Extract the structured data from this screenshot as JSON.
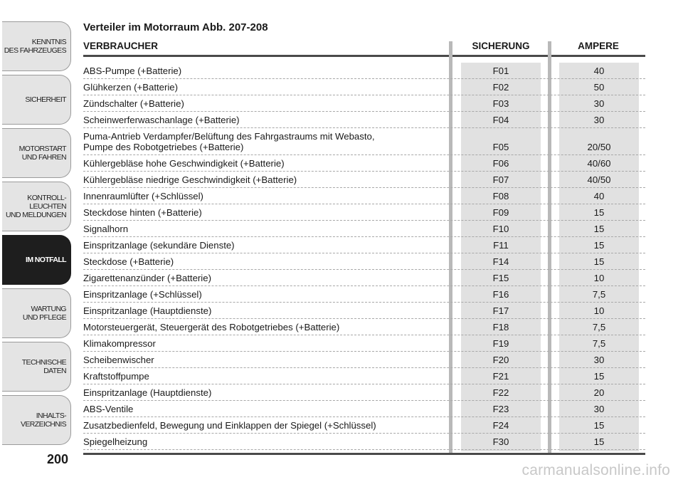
{
  "sidebar": {
    "tabs": [
      {
        "label": "KENNTNIS\nDES FAHRZEUGES",
        "active": false
      },
      {
        "label": "SICHERHEIT",
        "active": false
      },
      {
        "label": "MOTORSTART\nUND FAHREN",
        "active": false
      },
      {
        "label": "KONTROLL-\nLEUCHTEN\nUND MELDUNGEN",
        "active": false
      },
      {
        "label": "IM NOTFALL",
        "active": true
      },
      {
        "label": "WARTUNG\nUND PFLEGE",
        "active": false
      },
      {
        "label": "TECHNISCHE\nDATEN",
        "active": false
      },
      {
        "label": "INHALTS-\nVERZEICHNIS",
        "active": false
      }
    ],
    "page_number": "200"
  },
  "content": {
    "title": "Verteiler im Motorraum Abb. 207-208",
    "headers": {
      "consumer": "VERBRAUCHER",
      "fuse": "SICHERUNG",
      "ampere": "AMPERE"
    },
    "rows": [
      {
        "consumer": "ABS-Pumpe (+Batterie)",
        "fuse": "F01",
        "ampere": "40"
      },
      {
        "consumer": "Glühkerzen (+Batterie)",
        "fuse": "F02",
        "ampere": "50"
      },
      {
        "consumer": "Zündschalter (+Batterie)",
        "fuse": "F03",
        "ampere": "30"
      },
      {
        "consumer": "Scheinwerferwaschanlage (+Batterie)",
        "fuse": "F04",
        "ampere": "30"
      },
      {
        "consumer": "Puma-Antrieb Verdampfer/Belüftung des Fahrgastraums mit Webasto,\nPumpe des Robotgetriebes (+Batterie)",
        "fuse": "F05",
        "ampere": "20/50"
      },
      {
        "consumer": "Kühlergebläse hohe Geschwindigkeit (+Batterie)",
        "fuse": "F06",
        "ampere": "40/60"
      },
      {
        "consumer": "Kühlergebläse niedrige Geschwindigkeit (+Batterie)",
        "fuse": "F07",
        "ampere": "40/50"
      },
      {
        "consumer": "Innenraumlüfter (+Schlüssel)",
        "fuse": "F08",
        "ampere": "40"
      },
      {
        "consumer": "Steckdose hinten (+Batterie)",
        "fuse": "F09",
        "ampere": "15"
      },
      {
        "consumer": "Signalhorn",
        "fuse": "F10",
        "ampere": "15"
      },
      {
        "consumer": "Einspritzanlage (sekundäre Dienste)",
        "fuse": "F11",
        "ampere": "15"
      },
      {
        "consumer": "Steckdose (+Batterie)",
        "fuse": "F14",
        "ampere": "15"
      },
      {
        "consumer": "Zigarettenanzünder (+Batterie)",
        "fuse": "F15",
        "ampere": "10"
      },
      {
        "consumer": "Einspritzanlage (+Schlüssel)",
        "fuse": "F16",
        "ampere": "7,5"
      },
      {
        "consumer": "Einspritzanlage (Hauptdienste)",
        "fuse": "F17",
        "ampere": "10"
      },
      {
        "consumer": "Motorsteuergerät, Steuergerät des Robotgetriebes (+Batterie)",
        "fuse": "F18",
        "ampere": "7,5"
      },
      {
        "consumer": "Klimakompressor",
        "fuse": "F19",
        "ampere": "7,5"
      },
      {
        "consumer": "Scheibenwischer",
        "fuse": "F20",
        "ampere": "30"
      },
      {
        "consumer": "Kraftstoffpumpe",
        "fuse": "F21",
        "ampere": "15"
      },
      {
        "consumer": "Einspritzanlage (Hauptdienste)",
        "fuse": "F22",
        "ampere": "20"
      },
      {
        "consumer": "ABS-Ventile",
        "fuse": "F23",
        "ampere": "30"
      },
      {
        "consumer": "Zusatzbedienfeld, Bewegung und Einklappen der Spiegel (+Schlüssel)",
        "fuse": "F24",
        "ampere": "15"
      },
      {
        "consumer": "Spiegelheizung",
        "fuse": "F30",
        "ampere": "15"
      }
    ]
  },
  "watermark": "carmanualsonline.info"
}
